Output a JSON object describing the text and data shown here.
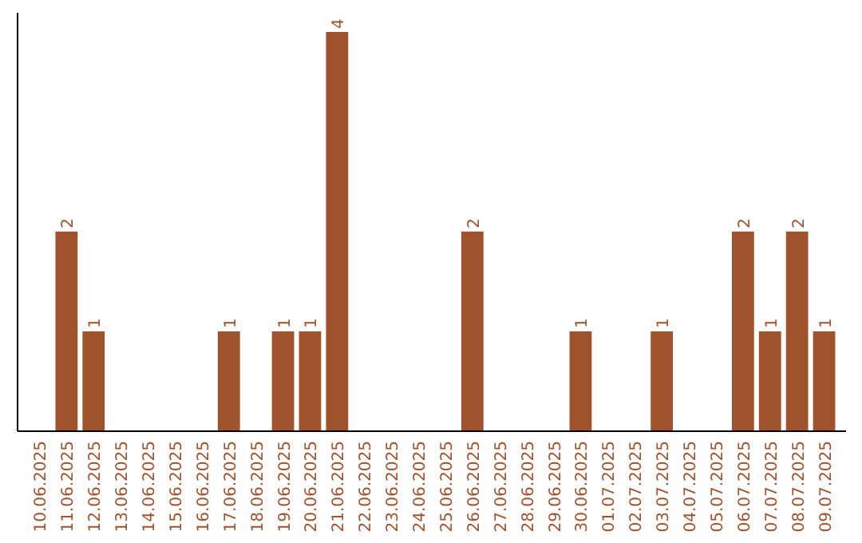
{
  "chart_data": {
    "type": "bar",
    "categories": [
      "10.06.2025",
      "11.06.2025",
      "12.06.2025",
      "13.06.2025",
      "14.06.2025",
      "15.06.2025",
      "16.06.2025",
      "17.06.2025",
      "18.06.2025",
      "19.06.2025",
      "20.06.2025",
      "21.06.2025",
      "22.06.2025",
      "23.06.2025",
      "24.06.2025",
      "25.06.2025",
      "26.06.2025",
      "27.06.2025",
      "28.06.2025",
      "29.06.2025",
      "30.06.2025",
      "01.07.2025",
      "02.07.2025",
      "03.07.2025",
      "04.07.2025",
      "05.07.2025",
      "06.07.2025",
      "07.07.2025",
      "08.07.2025",
      "09.07.2025"
    ],
    "values": [
      0,
      2,
      1,
      0,
      0,
      0,
      0,
      1,
      0,
      1,
      1,
      4,
      0,
      0,
      0,
      0,
      2,
      0,
      0,
      0,
      1,
      0,
      0,
      1,
      0,
      0,
      2,
      1,
      2,
      1
    ],
    "value_labels": [
      null,
      "2",
      "1",
      null,
      null,
      null,
      null,
      "1",
      null,
      "1",
      "1",
      "4",
      null,
      null,
      null,
      null,
      "2",
      null,
      null,
      null,
      "1",
      null,
      null,
      "1",
      null,
      null,
      "2",
      "1",
      "2",
      "1"
    ],
    "color": "#a0522d"
  }
}
